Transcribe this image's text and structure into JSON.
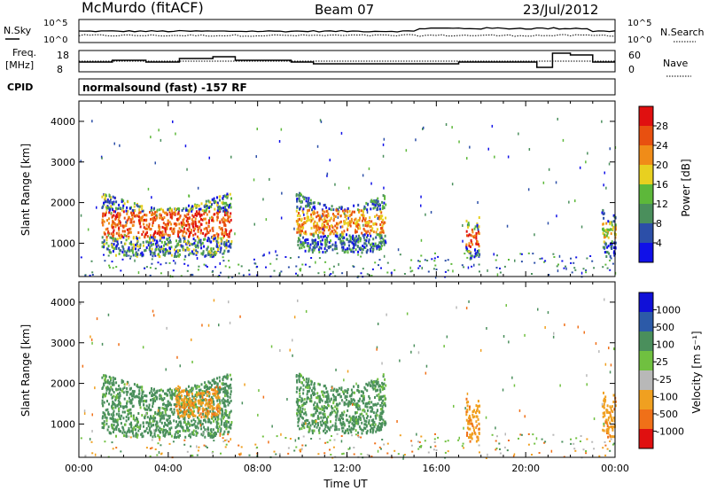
{
  "header": {
    "station": "McMurdo (fitACF)",
    "beam": "Beam 07",
    "date": "23/Jul/2012",
    "cpid_label": "CPID",
    "cpid_value": "normalsound (fast) -157 RF"
  },
  "noise_panel": {
    "left_label": "N.Sky",
    "right_label": "N.Search",
    "left_ticks": [
      "10^5",
      "10^0"
    ],
    "right_ticks": [
      "10^5",
      "10^0"
    ]
  },
  "freq_panel": {
    "left_label_line1": "Freq.",
    "left_label_line2": "[MHz]",
    "right_label": "Nave",
    "left_ticks": [
      "18",
      "8"
    ],
    "right_ticks": [
      "60",
      "0"
    ]
  },
  "colors": {
    "power": [
      "#1010e8",
      "#2c4fa8",
      "#4a8f5c",
      "#5db83a",
      "#e8d020",
      "#f08c18",
      "#e85010",
      "#e01010"
    ],
    "velocity": [
      "#1010d8",
      "#2c5aa8",
      "#4a8f5c",
      "#70c040",
      "#b8b8b8",
      "#f0a020",
      "#f07018",
      "#e01010"
    ]
  },
  "chart_data": [
    {
      "type": "heatmap",
      "name": "power",
      "ylabel": "Slant Range [km]",
      "xlabel": "",
      "colorbar_label": "Power [dB]",
      "colorbar_ticks": [
        "4",
        "8",
        "12",
        "16",
        "20",
        "24",
        "28"
      ],
      "ylim": [
        180,
        4500
      ],
      "yticks": [
        "1000",
        "2000",
        "3000",
        "4000"
      ],
      "x_range_hours": [
        0,
        24
      ],
      "features": [
        {
          "t0": 1.0,
          "t1": 6.8,
          "r0": 700,
          "r1": 2300,
          "level": 5
        },
        {
          "t0": 9.7,
          "t1": 13.7,
          "r0": 800,
          "r1": 2300,
          "level": 4
        },
        {
          "t0": 17.3,
          "t1": 17.9,
          "r0": 600,
          "r1": 1700,
          "level": 5
        },
        {
          "t0": 23.4,
          "t1": 24.0,
          "r0": 700,
          "r1": 1900,
          "level": 3
        }
      ]
    },
    {
      "type": "heatmap",
      "name": "velocity",
      "ylabel": "Slant Range [km]",
      "xlabel": "Time UT",
      "colorbar_label": "Velocity [m s⁻¹]",
      "colorbar_ticks": [
        "1000",
        "500",
        "100",
        "25",
        "-25",
        "-100",
        "-500",
        "-1000"
      ],
      "ylim": [
        180,
        4500
      ],
      "yticks": [
        "1000",
        "2000",
        "3000",
        "4000"
      ],
      "xticks": [
        "00:00",
        "04:00",
        "08:00",
        "12:00",
        "16:00",
        "20:00",
        "00:00"
      ],
      "x_range_hours": [
        0,
        24
      ],
      "features": [
        {
          "t0": 1.0,
          "t1": 6.8,
          "r0": 700,
          "r1": 2300,
          "velocity": 25
        },
        {
          "t0": 4.3,
          "t1": 6.3,
          "r0": 1200,
          "r1": 2000,
          "velocity": -100
        },
        {
          "t0": 9.7,
          "t1": 13.7,
          "r0": 800,
          "r1": 2300,
          "velocity": 25
        },
        {
          "t0": 17.3,
          "t1": 17.9,
          "r0": 600,
          "r1": 1700,
          "velocity": -100
        },
        {
          "t0": 23.4,
          "t1": 24.0,
          "r0": 700,
          "r1": 1900,
          "velocity": -100
        }
      ]
    }
  ]
}
